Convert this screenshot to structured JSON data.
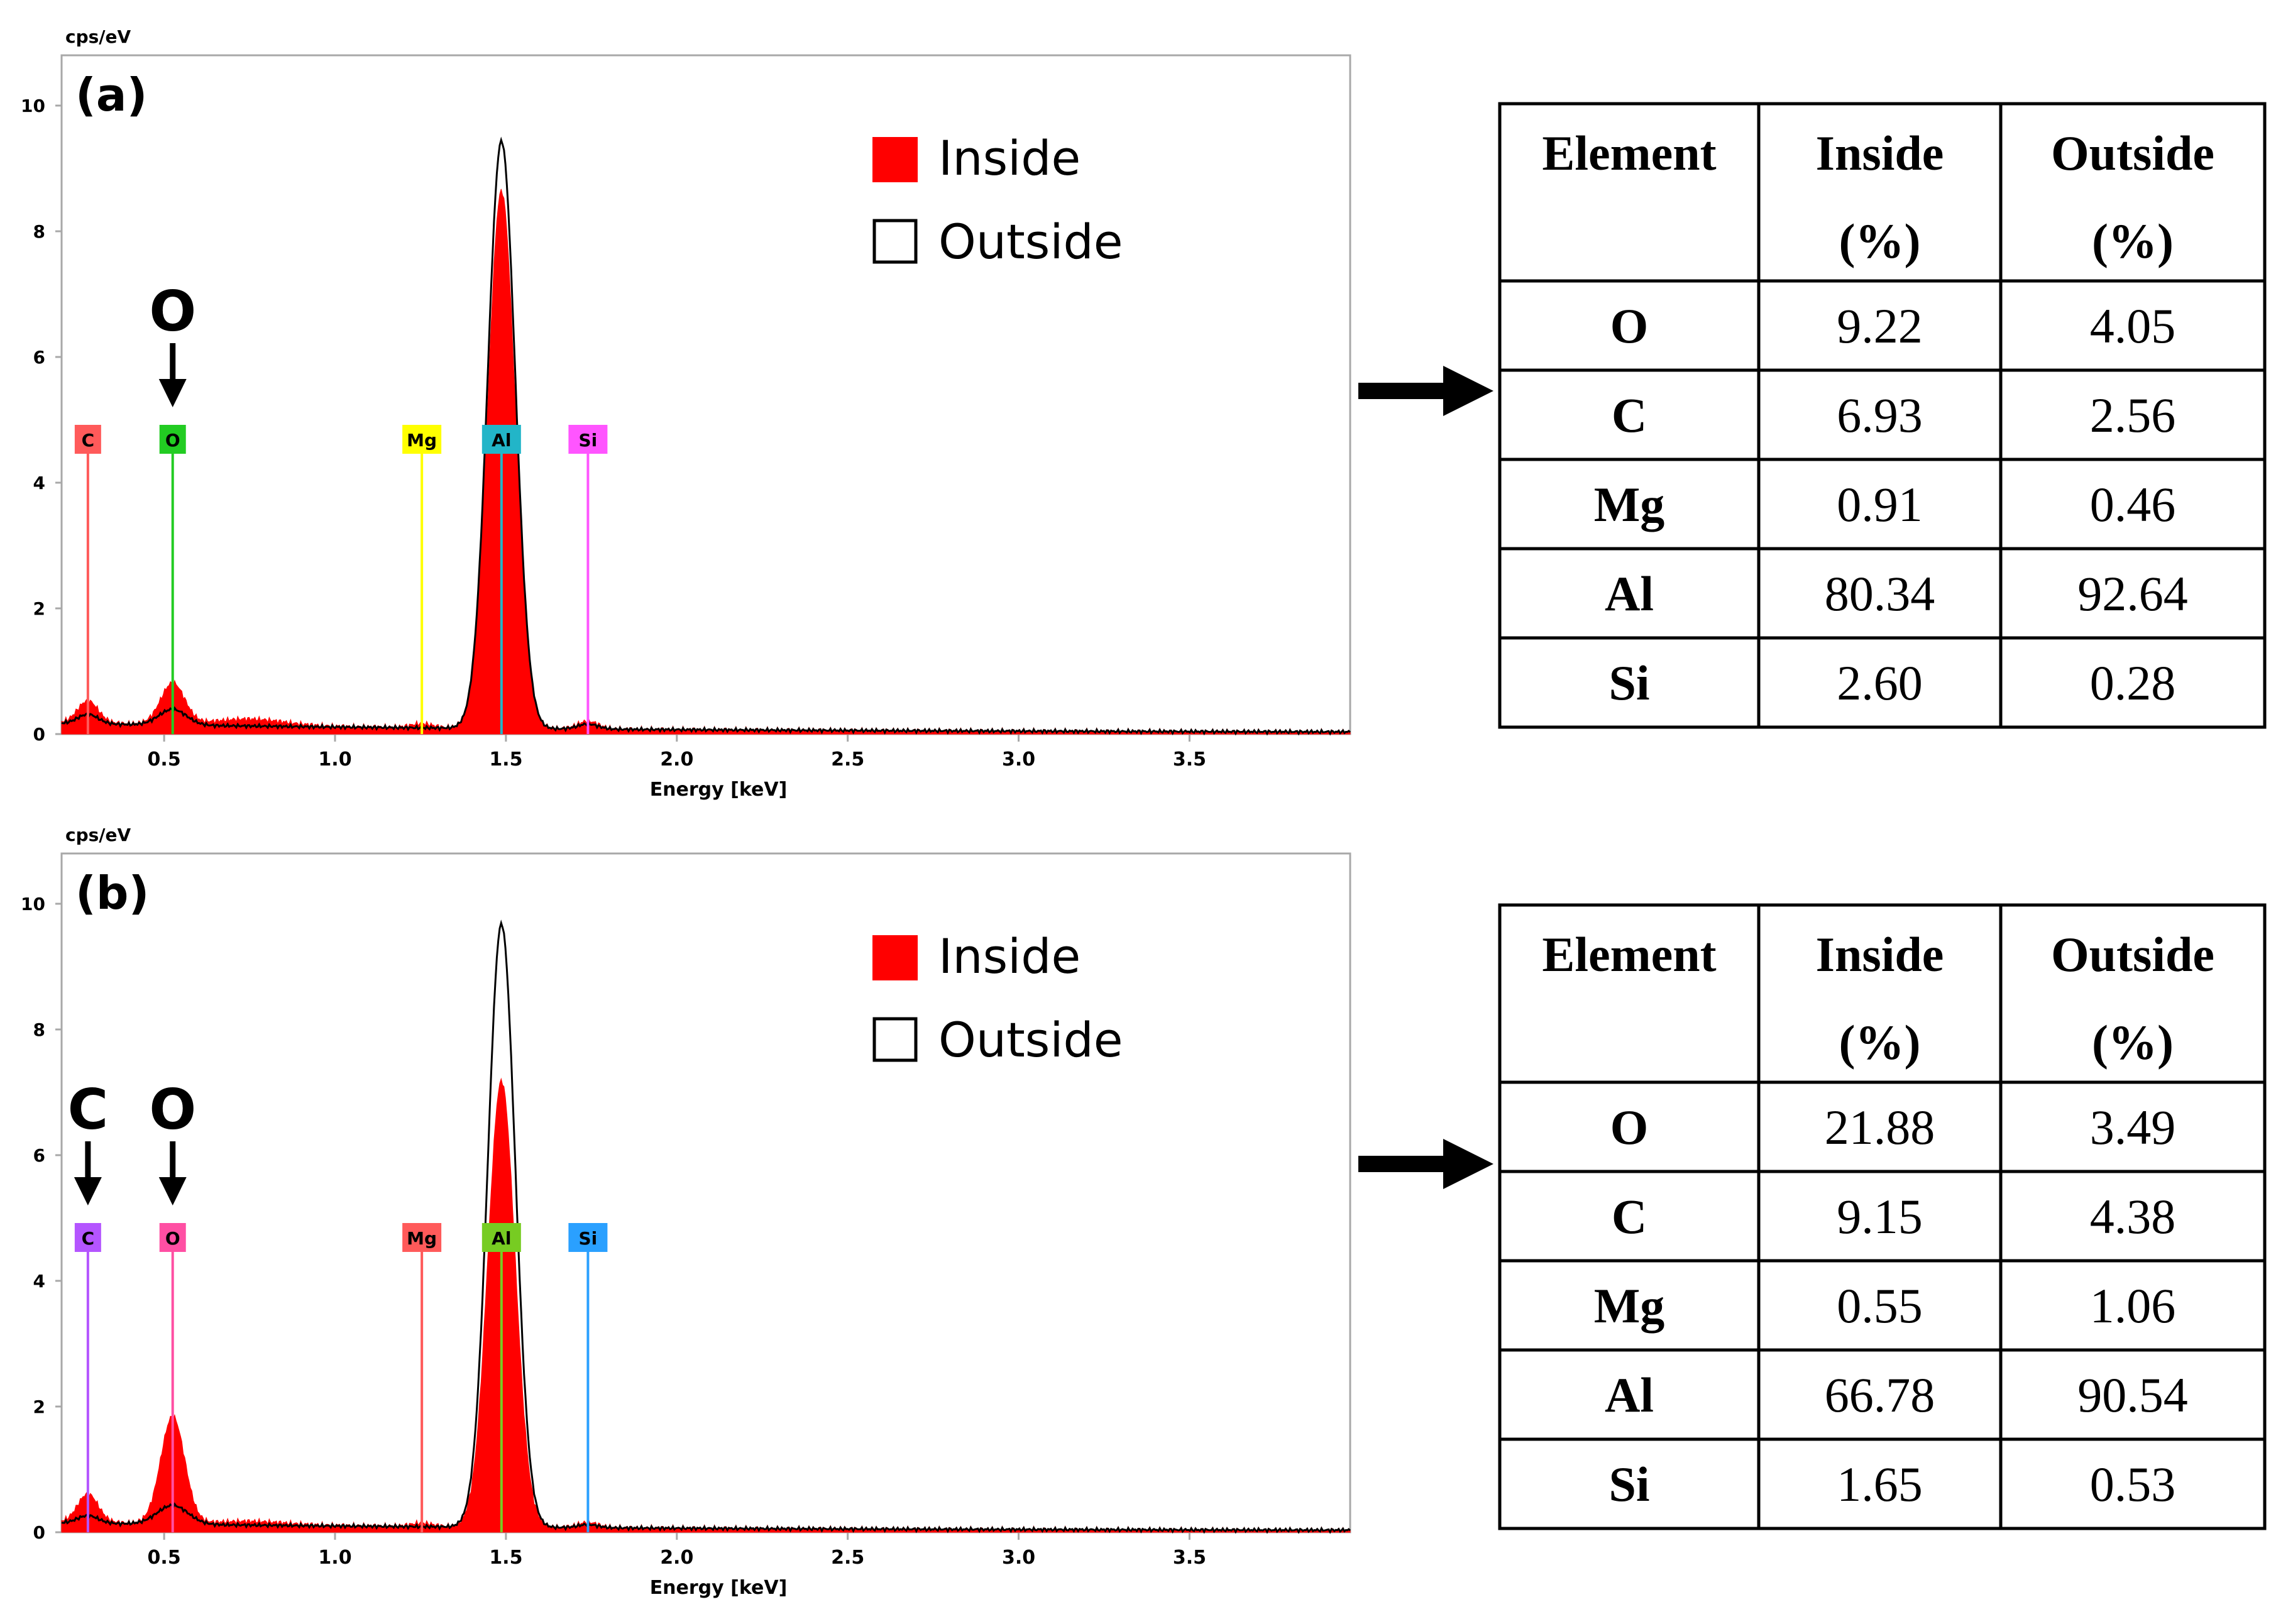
{
  "colors": {
    "inside_fill": "#ff0000",
    "outside_line": "#000000",
    "axis": "#a8a8a8",
    "text": "#000000"
  },
  "chart_data": [
    {
      "type": "area",
      "panel_label": "(a)",
      "title": "",
      "ylabel": "cps/eV",
      "xlabel": "Energy [keV]",
      "xlim": [
        0.2,
        3.97
      ],
      "ylim": [
        0,
        10.8
      ],
      "xticks": [
        "0.5",
        "1.0",
        "1.5",
        "2.0",
        "2.5",
        "3.0",
        "3.5"
      ],
      "xtick_values": [
        0.5,
        1.0,
        1.5,
        2.0,
        2.5,
        3.0,
        3.5
      ],
      "yticks": [
        "0",
        "2",
        "4",
        "6",
        "8",
        "10"
      ],
      "ytick_values": [
        0,
        2,
        4,
        6,
        8,
        10
      ],
      "legend": [
        {
          "name": "Inside",
          "style": "filled"
        },
        {
          "name": "Outside",
          "style": "outline"
        }
      ],
      "legend_position": "top-right",
      "series": [
        {
          "name": "Inside",
          "peaks": [
            {
              "energy": 0.277,
              "height": 0.35,
              "width": 0.03
            },
            {
              "energy": 0.525,
              "height": 0.65,
              "width": 0.035
            },
            {
              "energy": 0.75,
              "height": 0.1,
              "width": 0.1
            },
            {
              "energy": 1.254,
              "height": 0.06,
              "width": 0.03
            },
            {
              "energy": 1.487,
              "height": 8.55,
              "width": 0.04
            },
            {
              "energy": 1.74,
              "height": 0.12,
              "width": 0.03
            }
          ],
          "background": 0.17
        },
        {
          "name": "Outside",
          "peaks": [
            {
              "energy": 0.277,
              "height": 0.15,
              "width": 0.03
            },
            {
              "energy": 0.525,
              "height": 0.25,
              "width": 0.04
            },
            {
              "energy": 1.487,
              "height": 9.35,
              "width": 0.04
            },
            {
              "energy": 1.74,
              "height": 0.08,
              "width": 0.03
            }
          ],
          "background": 0.15
        }
      ],
      "element_markers": [
        {
          "label": "C",
          "energy": 0.277,
          "color": "#ff5a5a"
        },
        {
          "label": "O",
          "energy": 0.525,
          "color": "#22cc22"
        },
        {
          "label": "Mg",
          "energy": 1.254,
          "color": "#ffff00"
        },
        {
          "label": "Al",
          "energy": 1.487,
          "color": "#22b5c8"
        },
        {
          "label": "Si",
          "energy": 1.74,
          "color": "#ff55ff"
        }
      ],
      "arrow_annotations": [
        {
          "label": "O",
          "energy": 0.525
        }
      ]
    },
    {
      "type": "area",
      "panel_label": "(b)",
      "title": "",
      "ylabel": "cps/eV",
      "xlabel": "Energy [keV]",
      "xlim": [
        0.2,
        3.97
      ],
      "ylim": [
        0,
        10.8
      ],
      "xticks": [
        "0.5",
        "1.0",
        "1.5",
        "2.0",
        "2.5",
        "3.0",
        "3.5"
      ],
      "xtick_values": [
        0.5,
        1.0,
        1.5,
        2.0,
        2.5,
        3.0,
        3.5
      ],
      "yticks": [
        "0",
        "2",
        "4",
        "6",
        "8",
        "10"
      ],
      "ytick_values": [
        0,
        2,
        4,
        6,
        8,
        10
      ],
      "legend": [
        {
          "name": "Inside",
          "style": "filled"
        },
        {
          "name": "Outside",
          "style": "outline"
        }
      ],
      "legend_position": "top-right",
      "series": [
        {
          "name": "Inside",
          "peaks": [
            {
              "energy": 0.277,
              "height": 0.45,
              "width": 0.03
            },
            {
              "energy": 0.525,
              "height": 1.7,
              "width": 0.035
            },
            {
              "energy": 0.75,
              "height": 0.05,
              "width": 0.1
            },
            {
              "energy": 1.254,
              "height": 0.05,
              "width": 0.03
            },
            {
              "energy": 1.487,
              "height": 7.1,
              "width": 0.04
            },
            {
              "energy": 1.74,
              "height": 0.08,
              "width": 0.03
            }
          ],
          "background": 0.15
        },
        {
          "name": "Outside",
          "peaks": [
            {
              "energy": 0.277,
              "height": 0.12,
              "width": 0.03
            },
            {
              "energy": 0.525,
              "height": 0.3,
              "width": 0.045
            },
            {
              "energy": 1.487,
              "height": 9.6,
              "width": 0.04
            },
            {
              "energy": 1.74,
              "height": 0.05,
              "width": 0.03
            }
          ],
          "background": 0.13
        }
      ],
      "element_markers": [
        {
          "label": "C",
          "energy": 0.277,
          "color": "#b455ff"
        },
        {
          "label": "O",
          "energy": 0.525,
          "color": "#ff4fa3"
        },
        {
          "label": "Mg",
          "energy": 1.254,
          "color": "#ff5a5a"
        },
        {
          "label": "Al",
          "energy": 1.487,
          "color": "#77cc22"
        },
        {
          "label": "Si",
          "energy": 1.74,
          "color": "#2aa0ff"
        }
      ],
      "arrow_annotations": [
        {
          "label": "C",
          "energy": 0.277
        },
        {
          "label": "O",
          "energy": 0.525
        }
      ]
    },
    {
      "type": "table",
      "for_panel": "(a)",
      "columns": [
        [
          "Element"
        ],
        [
          "Inside",
          "(%)"
        ],
        [
          "Outside",
          "(%)"
        ]
      ],
      "rows": [
        [
          "O",
          "9.22",
          "4.05"
        ],
        [
          "C",
          "6.93",
          "2.56"
        ],
        [
          "Mg",
          "0.91",
          "0.46"
        ],
        [
          "Al",
          "80.34",
          "92.64"
        ],
        [
          "Si",
          "2.60",
          "0.28"
        ]
      ]
    },
    {
      "type": "table",
      "for_panel": "(b)",
      "columns": [
        [
          "Element"
        ],
        [
          "Inside",
          "(%)"
        ],
        [
          "Outside",
          "(%)"
        ]
      ],
      "rows": [
        [
          "O",
          "21.88",
          "3.49"
        ],
        [
          "C",
          "9.15",
          "4.38"
        ],
        [
          "Mg",
          "0.55",
          "1.06"
        ],
        [
          "Al",
          "66.78",
          "90.54"
        ],
        [
          "Si",
          "1.65",
          "0.53"
        ]
      ]
    }
  ]
}
